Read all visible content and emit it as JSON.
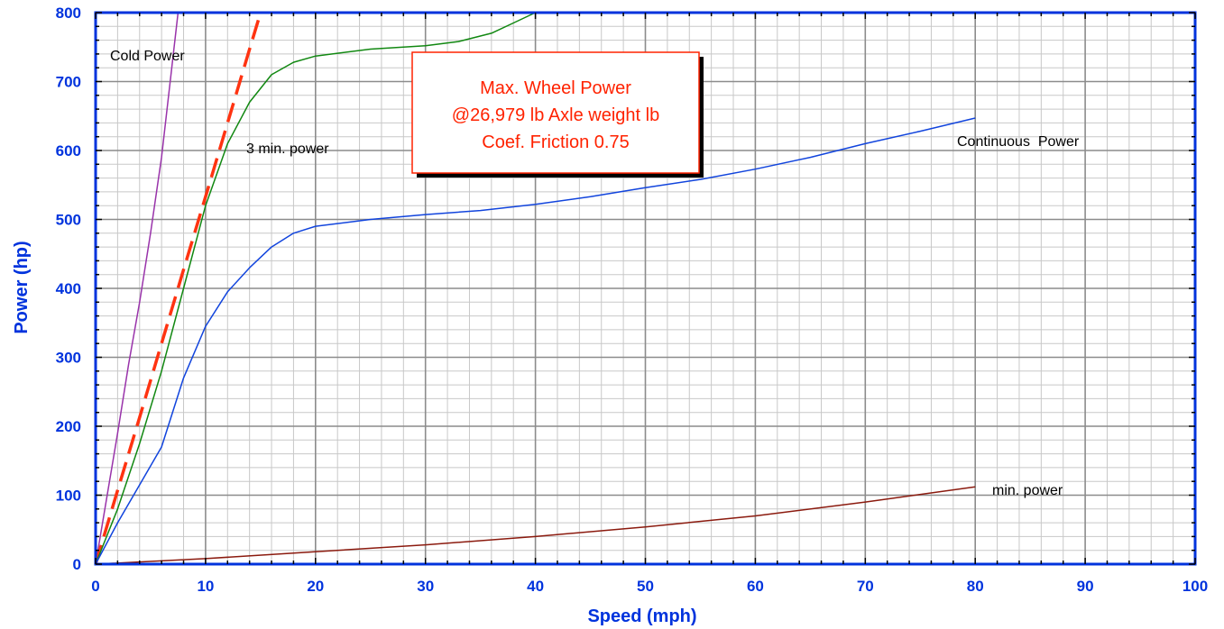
{
  "chart_data": {
    "type": "line",
    "xlabel": "Speed  (mph)",
    "ylabel": "Power  (hp)",
    "xlim": [
      0,
      100
    ],
    "ylim": [
      0,
      800
    ],
    "xticks": [
      0,
      10,
      20,
      30,
      40,
      50,
      60,
      70,
      80,
      90,
      100
    ],
    "yticks": [
      0,
      100,
      200,
      300,
      400,
      500,
      600,
      700,
      800
    ],
    "grid": true,
    "minor_grid": true,
    "colors": {
      "axis": "#0033dd",
      "grid_major": "#8c8c8c",
      "grid_minor": "#c8c8c8",
      "annotation_text": "#ff2200",
      "annotation_border": "#ff2200"
    },
    "series": [
      {
        "name": "Cold Power",
        "color": "#9933aa",
        "style": "solid",
        "x": [
          0,
          1,
          2,
          3,
          4,
          5,
          6,
          6.5,
          7,
          7.5
        ],
        "y": [
          0,
          95,
          190,
          290,
          380,
          480,
          590,
          660,
          730,
          800
        ]
      },
      {
        "name": "Max. Wheel Power",
        "color": "#ff3311",
        "style": "dashed",
        "x": [
          0,
          2,
          4,
          6,
          8,
          10,
          12,
          14,
          15
        ],
        "y": [
          0,
          107,
          213,
          320,
          427,
          533,
          640,
          747,
          800
        ]
      },
      {
        "name": "3 min. power",
        "color": "#118811",
        "style": "solid",
        "x": [
          0,
          2,
          4,
          6,
          8,
          10,
          12,
          14,
          16,
          18,
          20,
          25,
          30,
          33,
          36,
          38,
          40
        ],
        "y": [
          0,
          80,
          175,
          280,
          400,
          520,
          610,
          670,
          710,
          728,
          737,
          747,
          752,
          758,
          770,
          785,
          800
        ]
      },
      {
        "name": "Continuous  Power",
        "color": "#1144dd",
        "style": "solid",
        "x": [
          0,
          2,
          4,
          6,
          8,
          10,
          12,
          14,
          16,
          18,
          20,
          25,
          30,
          35,
          40,
          45,
          50,
          55,
          60,
          65,
          70,
          75,
          80
        ],
        "y": [
          0,
          60,
          115,
          170,
          270,
          345,
          395,
          430,
          460,
          480,
          490,
          500,
          507,
          513,
          522,
          533,
          546,
          558,
          573,
          590,
          610,
          628,
          647
        ]
      },
      {
        "name": "min. power",
        "color": "#8b1a0e",
        "style": "solid",
        "x": [
          0,
          10,
          20,
          30,
          40,
          50,
          60,
          70,
          80
        ],
        "y": [
          0,
          8,
          18,
          28,
          40,
          54,
          70,
          90,
          112
        ]
      }
    ],
    "series_labels": [
      "Cold Power",
      "3 min. power",
      "Continuous  Power",
      "min. power"
    ],
    "annotation": {
      "lines": [
        "Max. Wheel Power",
        "@26,979 lb Axle weight lb",
        "Coef. Friction 0.75"
      ]
    }
  }
}
